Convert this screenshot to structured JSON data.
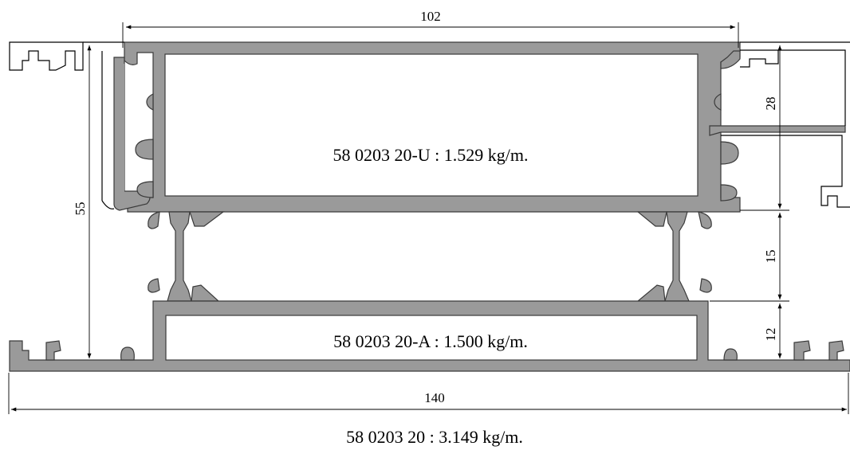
{
  "dimensions": {
    "top_width": "102",
    "overall_width": "140",
    "overall_height": "55",
    "upper_height": "28",
    "middle_height": "15",
    "lower_height": "12"
  },
  "labels": {
    "upper_profile": "58 0203 20-U : 1.529 kg/m.",
    "lower_profile": "58 0203 20-A : 1.500 kg/m.",
    "assembly": "58 0203 20 : 3.149 kg/m."
  }
}
